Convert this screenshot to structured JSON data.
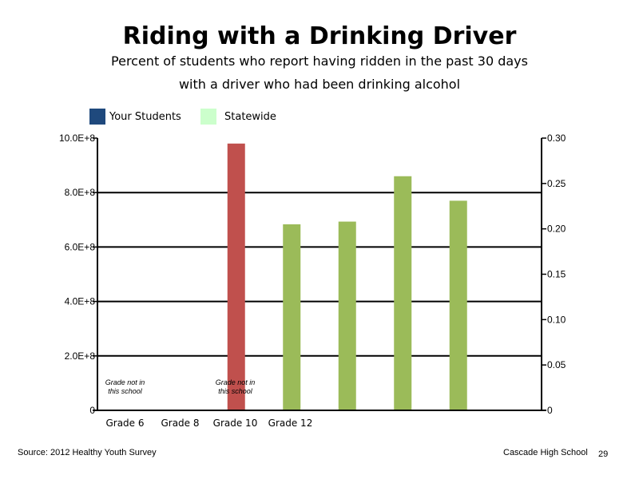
{
  "colors": {
    "your_students": "#1F497D",
    "statewide_legend": "#CCFFCC",
    "highlight_bar": "#C0504D",
    "statewide_bar": "#9BBB59",
    "axis": "#000000"
  },
  "footer": {
    "source": "Source: 2012 Healthy Youth Survey",
    "school": "Cascade High School",
    "page_number": "29"
  },
  "chart_data": {
    "type": "bar",
    "title": "Riding with a Drinking Driver",
    "subtitle_lines": [
      "Percent of students who report having ridden in the past 30 days",
      "with a driver who had been drinking alcohol"
    ],
    "legend": [
      "Your Students",
      "Statewide"
    ],
    "categories": [
      "Grade 6",
      "Grade 8",
      "Grade 10",
      "Grade 12"
    ],
    "left_axis": {
      "range": [
        0,
        1000000000
      ],
      "tick_labels": [
        "0",
        "2.0E+8",
        "4.0E+8",
        "6.0E+8",
        "8.0E+8",
        "10.0E+8"
      ]
    },
    "right_axis": {
      "range": [
        0,
        0.3
      ],
      "tick_labels": [
        "0",
        "0.05",
        "0.10",
        "0.15",
        "0.20",
        "0.25",
        "0.30"
      ]
    },
    "gridlines": [
      200000000,
      400000000,
      600000000,
      800000000
    ],
    "bars": [
      {
        "value": 980000000,
        "axis": "left",
        "color_key": "highlight_bar"
      },
      {
        "value": 0.205,
        "axis": "right",
        "color_key": "statewide_bar"
      },
      {
        "value": 0.208,
        "axis": "right",
        "color_key": "statewide_bar"
      },
      {
        "value": 0.258,
        "axis": "right",
        "color_key": "statewide_bar"
      },
      {
        "value": 0.231,
        "axis": "right",
        "color_key": "statewide_bar"
      }
    ],
    "annotations": [
      {
        "lines": [
          "Grade not in",
          "this school"
        ],
        "category": "Grade 6"
      },
      {
        "lines": [
          "Grade not in",
          "this school"
        ],
        "category": "Grade 10"
      }
    ]
  }
}
